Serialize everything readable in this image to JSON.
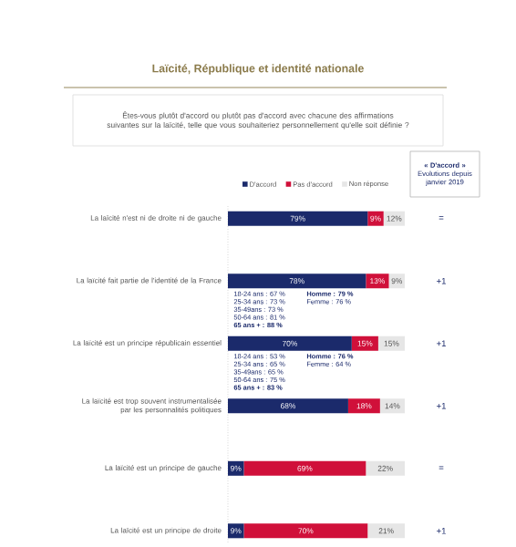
{
  "chart_data": {
    "type": "bar",
    "orientation": "horizontal",
    "stacked": true,
    "title": "Laïcité, République et identité nationale",
    "subtitle": "Êtes-vous plutôt d'accord ou plutôt pas d'accord avec chacune des affirmations suivantes sur la laïcité, telle que vous souhaiteriez personnellement qu'elle soit définie ?",
    "categories": [
      "La laïcité n'est ni de droite ni de gauche",
      "La laïcité fait partie de l'identité de la France",
      "La laïcité est un principe républicain essentiel",
      "La laïcité est trop souvent instrumentalisée par les personnalités politiques",
      "La laïcité est un principe de gauche",
      "La laïcité est un principe de droite"
    ],
    "series": [
      {
        "name": "D'accord",
        "color": "#1b2a6b",
        "values": [
          79,
          78,
          70,
          68,
          9,
          9
        ],
        "value_labels": [
          "79%",
          "78%",
          "70%",
          "68%",
          "9%",
          "9%"
        ]
      },
      {
        "name": "Pas d'accord",
        "color": "#d0103a",
        "values": [
          9,
          13,
          15,
          18,
          69,
          70
        ],
        "value_labels": [
          "9%",
          "13%",
          "15%",
          "18%",
          "69%",
          "70%"
        ]
      },
      {
        "name": "Non réponse",
        "color": "#e6e6e6",
        "values": [
          12,
          9,
          15,
          14,
          22,
          21
        ],
        "value_labels": [
          "12%",
          "9%",
          "15%",
          "14%",
          "22%",
          "21%"
        ]
      }
    ],
    "xlim": [
      0,
      100
    ],
    "tick_labels": "y",
    "legend": "top",
    "annotations": [
      "**« D'accord »** Evolutions depuis janvier 2019",
      "=",
      "+1",
      "+1",
      "+1",
      "=",
      "+1",
      "18-24 ans : 67 %",
      "25-34 ans : 73 %",
      "35-49ans : 73 %",
      "50-64 ans : 81 %",
      "**65 ans + : 88 %**",
      "**Homme : 79 %**",
      "Femme : 76 %",
      "18-24 ans : 53 %",
      "25-34 ans : 65 %",
      "35-49ans : 65 %",
      "50-64 ans : 75 %",
      "**65 ans + : 83 %**",
      "**Homme : 76 %**",
      "Femme : 64 %"
    ]
  }
}
